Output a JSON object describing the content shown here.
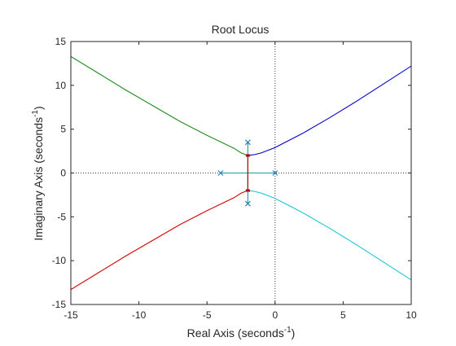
{
  "chart_data": {
    "type": "line",
    "title": "Root Locus",
    "xlabel": {
      "base": "Real Axis (seconds",
      "sup": "-1",
      "end": ")"
    },
    "ylabel": {
      "base": "Imaginary Axis (seconds",
      "sup": "-1",
      "end": ")"
    },
    "xlim": [
      -15,
      10
    ],
    "ylim": [
      -15,
      15
    ],
    "xticks": [
      -15,
      -10,
      -5,
      0,
      5,
      10
    ],
    "yticks": [
      -15,
      -10,
      -5,
      0,
      5,
      10,
      15
    ],
    "grid": false,
    "colors": {
      "green": "#1f8a1f",
      "blue": "#0000cc",
      "red": "#d40000",
      "cyan": "#19c4d6",
      "teal": "#1a9aa8",
      "darkred": "#b00000",
      "pole_marker": "#1f77b4",
      "axis": "#262626",
      "zeroline": "#3a3a3a"
    },
    "series": [
      {
        "color": "green",
        "x": [
          -15,
          -13,
          -11,
          -9,
          -7,
          -5,
          -4,
          -3,
          -2.5,
          -2
        ],
        "y": [
          13.3,
          11.4,
          9.5,
          7.7,
          5.9,
          4.3,
          3.55,
          2.8,
          2.3,
          2.0
        ]
      },
      {
        "color": "blue",
        "x": [
          -2,
          -1.5,
          -1,
          0,
          1,
          2,
          4,
          6,
          8,
          10
        ],
        "y": [
          2.0,
          2.1,
          2.3,
          2.9,
          3.7,
          4.5,
          6.3,
          8.2,
          10.2,
          12.2
        ]
      },
      {
        "color": "red",
        "x": [
          -15,
          -13,
          -11,
          -9,
          -7,
          -5,
          -4,
          -3,
          -2.5,
          -2
        ],
        "y": [
          -13.3,
          -11.4,
          -9.5,
          -7.7,
          -5.9,
          -4.3,
          -3.55,
          -2.8,
          -2.3,
          -2.0
        ]
      },
      {
        "color": "cyan",
        "x": [
          -2,
          -1.5,
          -1,
          0,
          1,
          2,
          4,
          6,
          8,
          10
        ],
        "y": [
          -2.0,
          -2.1,
          -2.3,
          -2.9,
          -3.7,
          -4.5,
          -6.3,
          -8.2,
          -10.2,
          -12.2
        ]
      },
      {
        "color": "teal",
        "x": [
          -4,
          -2,
          0
        ],
        "y": [
          0,
          0,
          0
        ]
      },
      {
        "color": "teal",
        "x": [
          -2,
          -2
        ],
        "y": [
          3.5,
          -3.5
        ]
      },
      {
        "color": "darkred",
        "x": [
          -2,
          -2
        ],
        "y": [
          2.0,
          -2.0
        ]
      }
    ],
    "poles": [
      {
        "x": -4,
        "y": 0
      },
      {
        "x": 0,
        "y": 0
      },
      {
        "x": -2,
        "y": 3.5
      },
      {
        "x": -2,
        "y": -3.5
      }
    ],
    "breakaway_points": [
      {
        "x": -2,
        "y": 2.0
      },
      {
        "x": -2,
        "y": -2.0
      }
    ]
  }
}
